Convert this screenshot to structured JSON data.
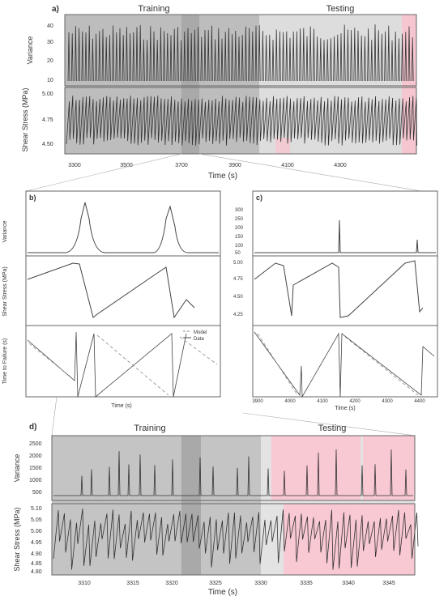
{
  "chart_data": [
    {
      "id": "a",
      "type": "line",
      "panel_label": "a)",
      "section_labels": [
        "Training",
        "Testing"
      ],
      "xlabel": "Time (s)",
      "x_ticks": [
        "3300",
        "3500",
        "3700",
        "3900",
        "4100",
        "4300"
      ],
      "subplots": [
        {
          "ylabel": "Variance",
          "y_ticks": [
            "40",
            "30",
            "20",
            "10"
          ],
          "ylim": [
            10,
            40
          ]
        },
        {
          "ylabel": "Shear Stress (MPa)",
          "y_ticks": [
            "5.00",
            "4.75",
            "4.50"
          ],
          "ylim": [
            4.45,
            5.05
          ]
        }
      ],
      "series_colors": {
        "line": "#333333",
        "training_bg": "#bdbdbd",
        "highlight_bg": "#a9a9a9",
        "testing_bg": "#dddddd",
        "testing_accent": "#f6c6d0"
      }
    },
    {
      "id": "b",
      "type": "line",
      "panel_label": "b)",
      "xlabel": "Time (s)",
      "subplots": [
        {
          "ylabel": "Variance"
        },
        {
          "ylabel": "Shear Stress (MPa)"
        },
        {
          "ylabel": "Time to Failure (s)"
        }
      ],
      "legend": [
        "Model",
        "Data"
      ]
    },
    {
      "id": "c",
      "type": "line",
      "panel_label": "c)",
      "xlabel": "Time (s)",
      "subplots": [
        {
          "y_ticks": [
            "300",
            "250",
            "200",
            "150",
            "100",
            "50"
          ]
        },
        {
          "y_ticks": [
            "5.00",
            "4.75",
            "4.50",
            "4.25"
          ]
        },
        {
          "y_ticks": []
        }
      ],
      "x_ticks": [
        "3900",
        "4000",
        "4100",
        "4200",
        "4300",
        "4400"
      ]
    },
    {
      "id": "d",
      "type": "line",
      "panel_label": "d)",
      "section_labels": [
        "Training",
        "Testing"
      ],
      "xlabel": "Time (s)",
      "x_ticks": [
        "3310",
        "3315",
        "3320",
        "3325",
        "3330",
        "3335",
        "3340",
        "3345"
      ],
      "subplots": [
        {
          "ylabel": "Variance",
          "y_ticks": [
            "2500",
            "2000",
            "1500",
            "1000",
            "500"
          ],
          "ylim": [
            0,
            2600
          ]
        },
        {
          "ylabel": "Shear Stress (MPa)",
          "y_ticks": [
            "5.10",
            "5.05",
            "5.00",
            "4.95",
            "4.90",
            "4.85",
            "4.80"
          ],
          "ylim": [
            4.78,
            5.12
          ]
        }
      ]
    }
  ]
}
